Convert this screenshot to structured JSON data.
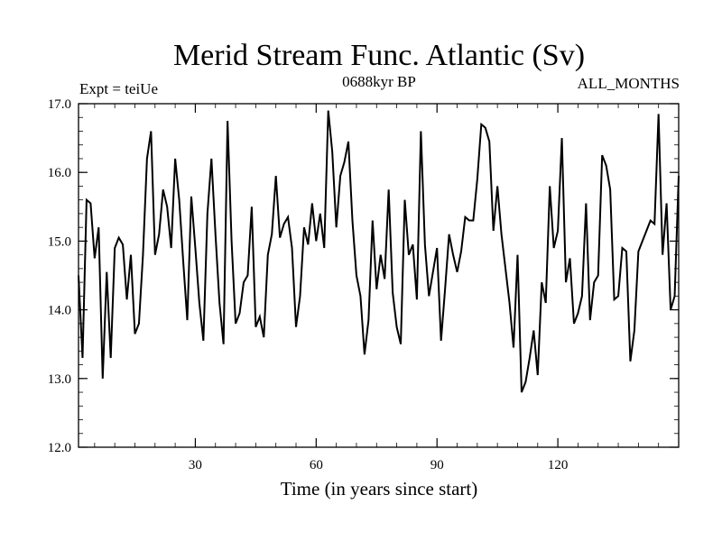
{
  "chart_data": {
    "type": "line",
    "title": "Merid Stream Func. Atlantic (Sv)",
    "subtitle_left": "Expt = teiUe",
    "subtitle_center": "0688kyr BP",
    "subtitle_right": "ALL_MONTHS",
    "xlabel": "Time (in years since start)",
    "ylabel": "",
    "xlim": [
      1,
      150
    ],
    "ylim": [
      12.0,
      17.0
    ],
    "x_ticks": [
      30,
      60,
      90,
      120
    ],
    "y_ticks": [
      "12.0",
      "13.0",
      "14.0",
      "15.0",
      "16.0",
      "17.0"
    ],
    "grid": false,
    "line_color": "#000000",
    "series": [
      {
        "x_start": 1,
        "x_step": 1,
        "values": [
          14.5,
          13.3,
          15.6,
          15.55,
          14.75,
          15.2,
          13.0,
          14.55,
          13.3,
          14.9,
          15.05,
          14.95,
          14.15,
          14.8,
          13.65,
          13.8,
          14.8,
          16.2,
          16.6,
          14.8,
          15.1,
          15.75,
          15.5,
          14.9,
          16.2,
          15.6,
          14.7,
          13.85,
          15.65,
          14.9,
          14.1,
          13.55,
          15.4,
          16.2,
          15.1,
          14.1,
          13.5,
          16.75,
          15.0,
          13.8,
          13.95,
          14.4,
          14.5,
          15.5,
          13.75,
          13.9,
          13.6,
          14.8,
          15.1,
          15.95,
          15.05,
          15.25,
          15.35,
          14.9,
          13.75,
          14.2,
          15.2,
          14.95,
          15.55,
          15.0,
          15.4,
          14.9,
          16.9,
          16.3,
          15.2,
          15.95,
          16.15,
          16.45,
          15.3,
          14.5,
          14.2,
          13.35,
          13.85,
          15.3,
          14.3,
          14.8,
          14.45,
          15.75,
          14.25,
          13.75,
          13.5,
          15.6,
          14.8,
          14.95,
          14.15,
          16.6,
          14.95,
          14.2,
          14.55,
          14.9,
          13.55,
          14.3,
          15.1,
          14.8,
          14.55,
          14.85,
          15.35,
          15.3,
          15.3,
          15.9,
          16.7,
          16.65,
          16.45,
          15.15,
          15.8,
          15.1,
          14.6,
          14.1,
          13.45,
          14.8,
          12.8,
          12.95,
          13.3,
          13.7,
          13.05,
          14.4,
          14.1,
          15.8,
          14.9,
          15.15,
          16.5,
          14.4,
          14.75,
          13.8,
          13.95,
          14.2,
          15.55,
          13.85,
          14.4,
          14.5,
          16.25,
          16.1,
          15.75,
          14.15,
          14.2,
          14.9,
          14.85,
          13.25,
          13.7,
          14.85,
          15.0,
          15.15,
          15.3,
          15.25,
          16.85,
          14.8,
          15.55,
          14.0,
          14.2,
          15.95
        ]
      }
    ]
  }
}
